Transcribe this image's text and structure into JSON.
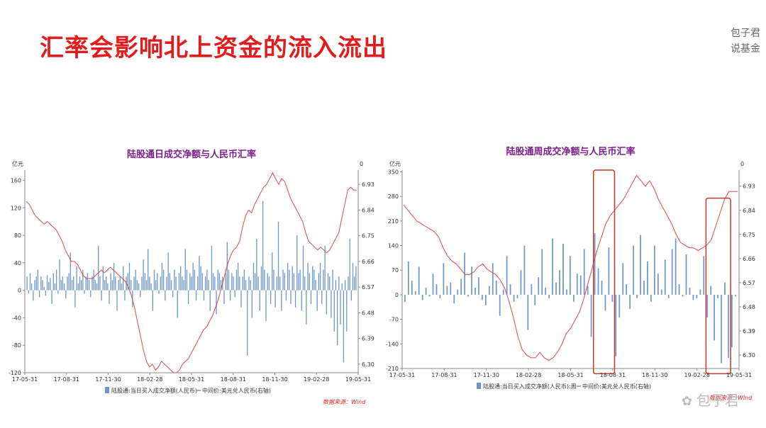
{
  "slide": {
    "title": "汇率会影响北上资金的流入流出",
    "brand_line1": "包子君",
    "brand_line2": "说基金",
    "watermark": "包子君"
  },
  "colors": {
    "bar": "#6f97c9",
    "line": "#d94a4a",
    "title": "#7b1f8c",
    "highlight": "#c0392b",
    "source": "#e02020"
  },
  "chart_data": [
    {
      "type": "bar",
      "title": "陆股通日成交净额与人民币汇率",
      "left_unit": "亿元",
      "right_unit": "0",
      "left_ylim": [
        -120,
        175
      ],
      "left_ticks": [
        160,
        120,
        80,
        40,
        0,
        -40,
        -80,
        -120
      ],
      "right_ylim": [
        6.27,
        6.98
      ],
      "right_ticks": [
        6.93,
        6.84,
        6.75,
        6.66,
        6.57,
        6.48,
        6.39,
        6.3
      ],
      "x_ticks": [
        "17-05-31",
        "17-08-31",
        "17-11-30",
        "18-02-28",
        "18-05-31",
        "18-08-31",
        "18-11-30",
        "19-02-28",
        "19-05-31"
      ],
      "source": "数据来源：Wind",
      "series": [
        {
          "name": "陆股通:当日买入成交净额(人民币)",
          "axis": "left",
          "values": [
            20,
            -5,
            25,
            10,
            -15,
            15,
            20,
            30,
            -10,
            20,
            15,
            5,
            -8,
            22,
            12,
            18,
            -20,
            25,
            10,
            30,
            -5,
            45,
            15,
            20,
            10,
            -12,
            20,
            25,
            55,
            15,
            20,
            -25,
            35,
            10,
            20,
            15,
            30,
            -5,
            20,
            25,
            15,
            -10,
            20,
            30,
            15,
            10,
            65,
            20,
            -15,
            35,
            15,
            20,
            10,
            -20,
            25,
            15,
            40,
            20,
            -30,
            15,
            20,
            10,
            35,
            -15,
            20,
            25,
            40,
            15,
            -25,
            20,
            30,
            15,
            10,
            -10,
            20,
            45,
            25,
            15,
            60,
            20,
            10,
            -30,
            30,
            15,
            25,
            -5,
            20,
            40,
            30,
            -15,
            20,
            55,
            25,
            15,
            -10,
            30,
            20,
            -40,
            25,
            35,
            20,
            15,
            60,
            30,
            -20,
            25,
            20,
            40,
            30,
            -15,
            20,
            50,
            35,
            25,
            -15,
            20,
            30,
            15,
            -30,
            65,
            25,
            20,
            -35,
            30,
            25,
            15,
            20,
            -20,
            25,
            70,
            30,
            -15,
            25,
            20,
            -10,
            30,
            40,
            20,
            -25,
            20,
            30,
            15,
            -95,
            20,
            15,
            -40,
            40,
            25,
            75,
            20,
            -30,
            35,
            130,
            30,
            -45,
            25,
            20,
            -20,
            55,
            30,
            -25,
            20,
            100,
            20,
            -30,
            30,
            25,
            -15,
            40,
            30,
            -20,
            35,
            25,
            -25,
            80,
            25,
            30,
            -30,
            65,
            20,
            -50,
            40,
            25,
            -20,
            35,
            30,
            15,
            -30,
            25,
            40,
            -20,
            30,
            65,
            -35,
            25,
            20,
            -40,
            30,
            -60,
            15,
            -80,
            20,
            -50,
            10,
            -105,
            15,
            -60,
            20,
            75,
            -15,
            40,
            20,
            35
          ]
        },
        {
          "name": "中间价:美元兑人民币(右轴)",
          "axis": "right",
          "values": [
            6.87,
            6.86,
            6.84,
            6.82,
            6.81,
            6.8,
            6.79,
            6.8,
            6.79,
            6.78,
            6.77,
            6.75,
            6.73,
            6.7,
            6.68,
            6.66,
            6.66,
            6.65,
            6.63,
            6.61,
            6.6,
            6.6,
            6.6,
            6.61,
            6.62,
            6.63,
            6.62,
            6.63,
            6.64,
            6.63,
            6.62,
            6.61,
            6.6,
            6.59,
            6.57,
            6.54,
            6.5,
            6.45,
            6.4,
            6.35,
            6.31,
            6.29,
            6.3,
            6.28,
            6.29,
            6.31,
            6.3,
            6.29,
            6.28,
            6.27,
            6.27,
            6.28,
            6.3,
            6.31,
            6.32,
            6.34,
            6.36,
            6.38,
            6.4,
            6.42,
            6.43,
            6.45,
            6.47,
            6.5,
            6.53,
            6.57,
            6.61,
            6.65,
            6.68,
            6.7,
            6.71,
            6.73,
            6.78,
            6.82,
            6.84,
            6.83,
            6.86,
            6.88,
            6.9,
            6.92,
            6.93,
            6.95,
            6.97,
            6.95,
            6.93,
            6.95,
            6.94,
            6.91,
            6.88,
            6.86,
            6.84,
            6.82,
            6.8,
            6.76,
            6.73,
            6.72,
            6.71,
            6.7,
            6.71,
            6.7,
            6.69,
            6.7,
            6.72,
            6.74,
            6.76,
            6.81,
            6.86,
            6.91,
            6.92,
            6.91,
            6.91
          ]
        }
      ]
    },
    {
      "type": "bar",
      "title": "陆股通周成交净额与人民币汇率",
      "left_unit": "亿元",
      "right_unit": "0",
      "left_ylim": [
        -210,
        355
      ],
      "left_ticks": [
        350,
        280,
        210,
        140,
        70,
        0,
        -70,
        -140,
        -210
      ],
      "right_ylim": [
        6.25,
        6.99
      ],
      "right_ticks": [
        6.93,
        6.84,
        6.75,
        6.66,
        6.57,
        6.48,
        6.39,
        6.3
      ],
      "x_ticks": [
        "17-05-31",
        "17-08-31",
        "17-11-30",
        "18-02-28",
        "18-05-31",
        "18-08-31",
        "18-11-30",
        "19-02-28",
        "19-05-31"
      ],
      "source": "数据来源：Wind",
      "series": [
        {
          "name": "陆股通:当日买入成交净额(人民币):周",
          "axis": "left",
          "values": [
            -20,
            95,
            40,
            10,
            80,
            -15,
            20,
            -5,
            60,
            30,
            -10,
            90,
            25,
            35,
            -25,
            15,
            45,
            120,
            -5,
            80,
            20,
            50,
            -15,
            -30,
            25,
            90,
            40,
            -60,
            15,
            110,
            30,
            -20,
            -10,
            70,
            140,
            -100,
            30,
            -30,
            50,
            130,
            20,
            -10,
            160,
            35,
            70,
            145,
            15,
            110,
            -20,
            60,
            55,
            130,
            25,
            -120,
            175,
            75,
            40,
            -45,
            135,
            -20,
            -175,
            -65,
            90,
            30,
            -40,
            140,
            -10,
            170,
            40,
            95,
            -20,
            140,
            60,
            15,
            100,
            -10,
            130,
            160,
            30,
            -5,
            115,
            20,
            -15,
            -10,
            15,
            110,
            -65,
            25,
            -130,
            -10,
            -195,
            35,
            -180,
            -150,
            -5
          ]
        },
        {
          "name": "中间价:美元兑人民币(右轴)",
          "axis": "right",
          "values": [
            6.86,
            6.84,
            6.82,
            6.8,
            6.79,
            6.78,
            6.77,
            6.76,
            6.74,
            6.7,
            6.67,
            6.65,
            6.64,
            6.62,
            6.6,
            6.6,
            6.61,
            6.63,
            6.64,
            6.62,
            6.61,
            6.6,
            6.58,
            6.55,
            6.5,
            6.44,
            6.37,
            6.32,
            6.3,
            6.29,
            6.29,
            6.31,
            6.29,
            6.28,
            6.29,
            6.31,
            6.34,
            6.38,
            6.4,
            6.43,
            6.46,
            6.51,
            6.57,
            6.63,
            6.69,
            6.74,
            6.79,
            6.82,
            6.84,
            6.86,
            6.88,
            6.91,
            6.94,
            6.97,
            6.95,
            6.93,
            6.95,
            6.92,
            6.88,
            6.85,
            6.82,
            6.79,
            6.75,
            6.72,
            6.71,
            6.7,
            6.7,
            6.69,
            6.7,
            6.71,
            6.73,
            6.78,
            6.83,
            6.88,
            6.91,
            6.91,
            6.91
          ]
        }
      ],
      "highlights": [
        {
          "from_week": 54,
          "to_week": 59,
          "ymin": -225,
          "ymax": 355
        },
        {
          "from_week": 86,
          "to_week": 92,
          "ymin": -225,
          "ymax": 275
        }
      ]
    }
  ]
}
